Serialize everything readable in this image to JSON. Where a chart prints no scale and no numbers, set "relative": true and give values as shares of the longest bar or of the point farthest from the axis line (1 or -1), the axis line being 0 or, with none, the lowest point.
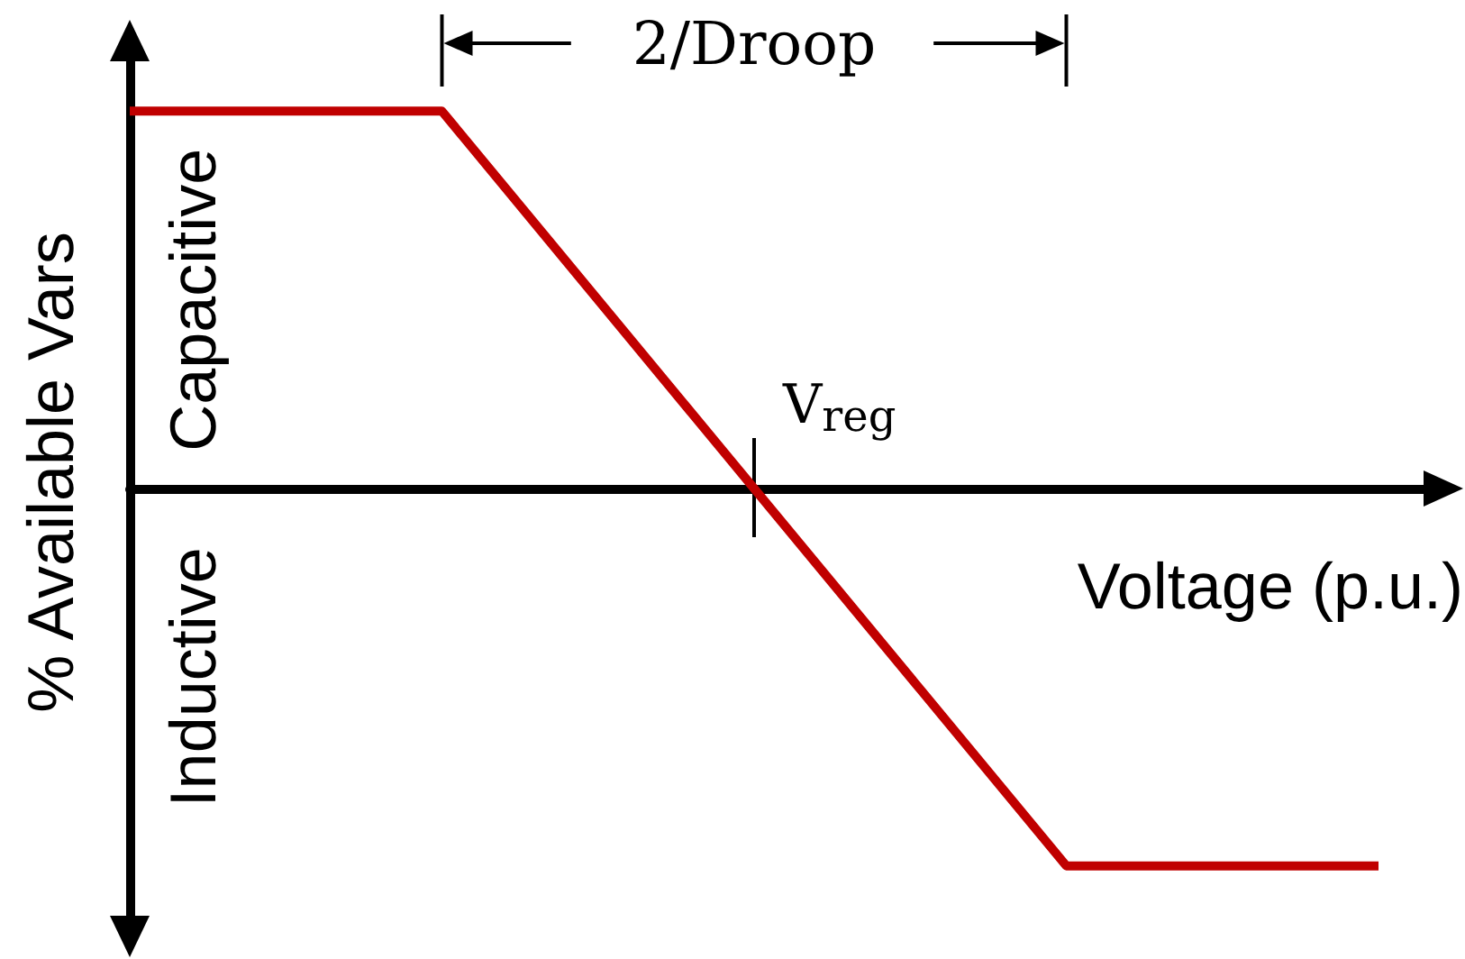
{
  "chart_data": {
    "type": "line",
    "relative": true,
    "xlabel": "Voltage (p.u.)",
    "ylabel": "% Available Vars",
    "categories": [
      null,
      null,
      null,
      null,
      null
    ],
    "values": [
      1,
      1,
      0,
      -1,
      -1
    ],
    "color": "#c00000",
    "annotations": [
      "2/Droop",
      "Capacitive",
      "V$_{reg}$",
      "Inductive"
    ]
  }
}
